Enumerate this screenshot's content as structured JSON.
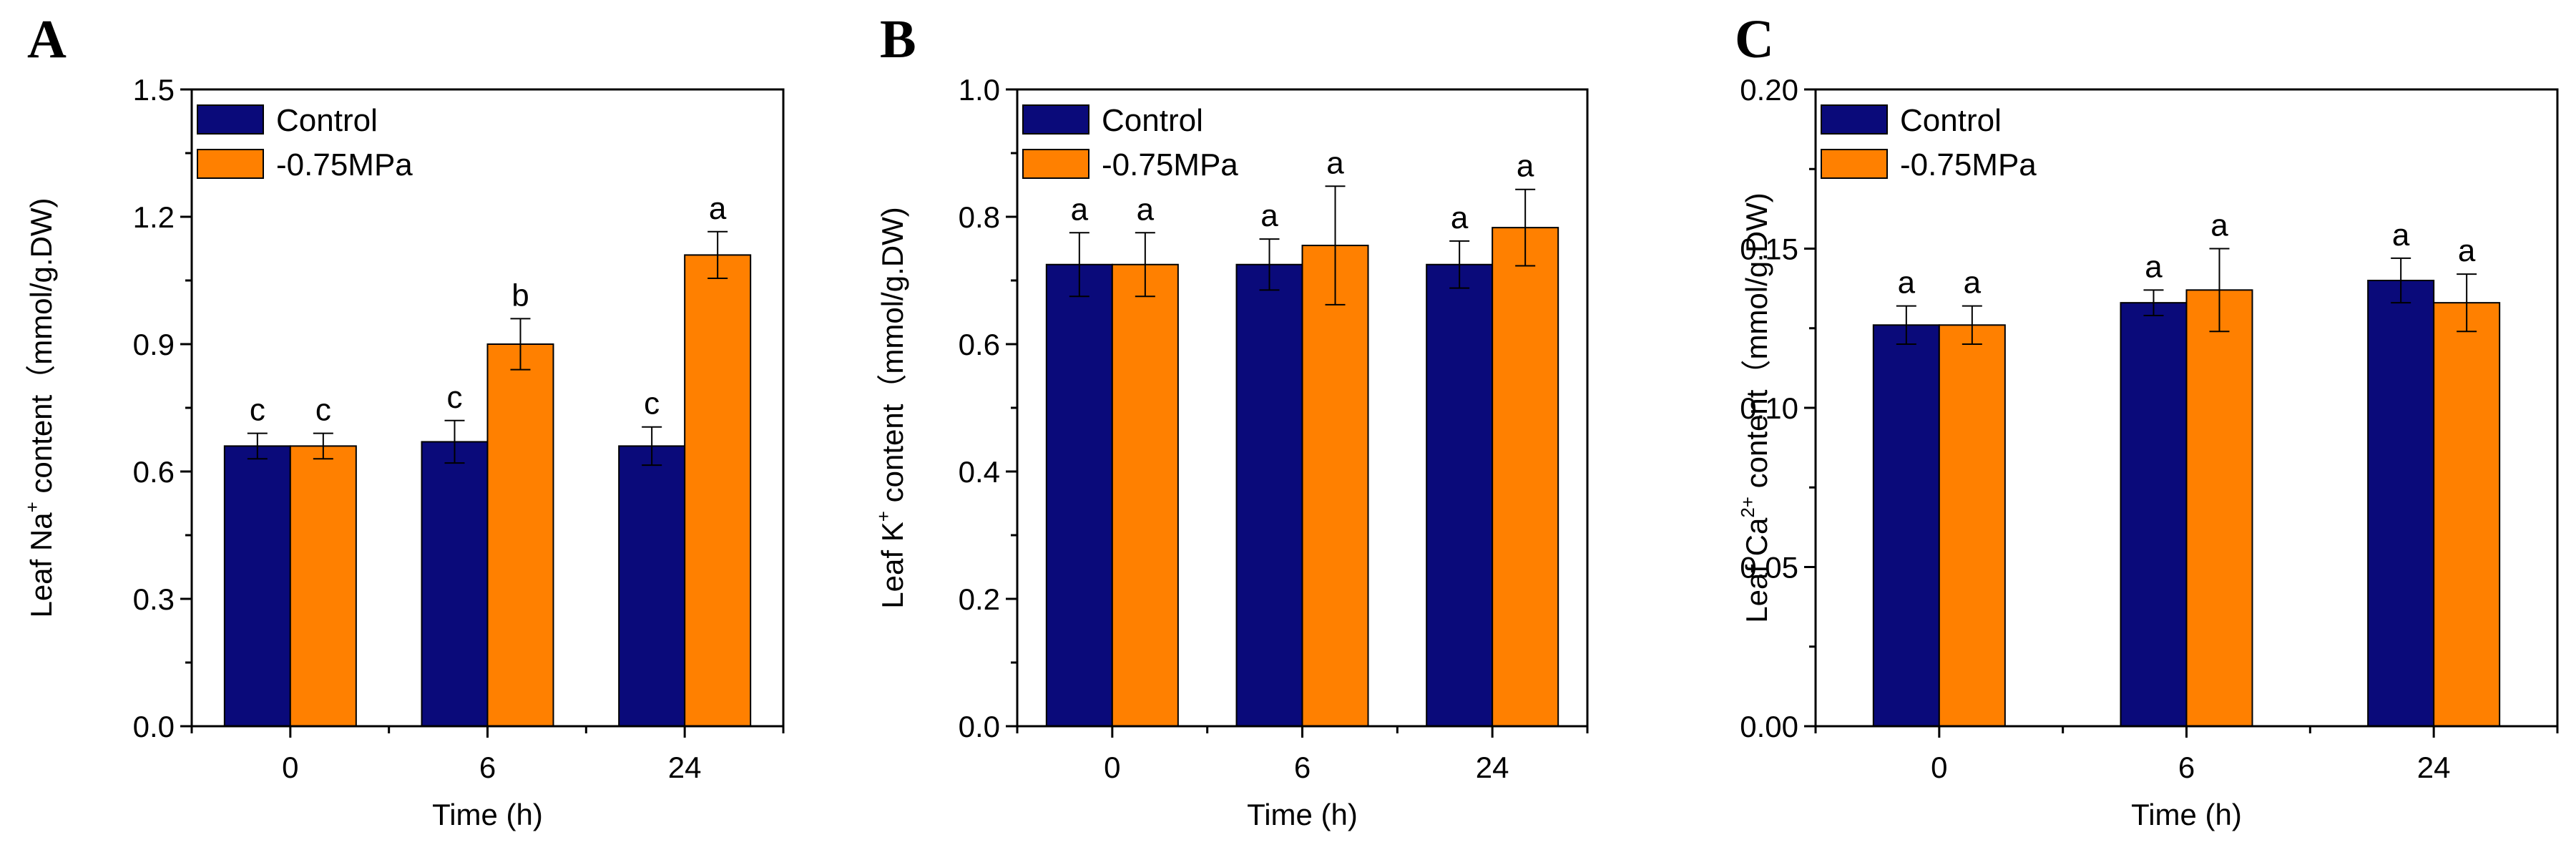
{
  "colors": {
    "control": "#0a0a7a",
    "treatment": "#ff8000",
    "axis": "#000000"
  },
  "chart_data": [
    {
      "type": "bar",
      "panel": "A",
      "categories": [
        "0",
        "6",
        "24"
      ],
      "xlabel": "Time (h)",
      "ylabel_parts": [
        "Leaf Na",
        "+",
        " content（mmol/g.DW)"
      ],
      "ylim": [
        0,
        1.5
      ],
      "yticks": [
        "0.0",
        "0.3",
        "0.6",
        "0.9",
        "1.2",
        "1.5"
      ],
      "legend_position": "top-left",
      "series": [
        {
          "name": "Control",
          "values": [
            0.66,
            0.67,
            0.66
          ],
          "errors": [
            0.03,
            0.05,
            0.045
          ],
          "sig": [
            "c",
            "c",
            "c"
          ]
        },
        {
          "name": "-0.75MPa",
          "values": [
            0.66,
            0.9,
            1.11
          ],
          "errors": [
            0.03,
            0.06,
            0.055
          ],
          "sig": [
            "c",
            "b",
            "a"
          ]
        }
      ]
    },
    {
      "type": "bar",
      "panel": "B",
      "categories": [
        "0",
        "6",
        "24"
      ],
      "xlabel": "Time (h)",
      "ylabel_parts": [
        "Leaf K",
        "+",
        " content（mmol/g.DW)"
      ],
      "ylim": [
        0,
        1.0
      ],
      "yticks": [
        "0.0",
        "0.2",
        "0.4",
        "0.6",
        "0.8",
        "1.0"
      ],
      "legend_position": "top-left",
      "series": [
        {
          "name": "Control",
          "values": [
            0.725,
            0.725,
            0.725
          ],
          "errors": [
            0.05,
            0.04,
            0.037
          ],
          "sig": [
            "a",
            "a",
            "a"
          ]
        },
        {
          "name": "-0.75MPa",
          "values": [
            0.725,
            0.755,
            0.783
          ],
          "errors": [
            0.05,
            0.093,
            0.06
          ],
          "sig": [
            "a",
            "a",
            "a"
          ]
        }
      ]
    },
    {
      "type": "bar",
      "panel": "C",
      "categories": [
        "0",
        "6",
        "24"
      ],
      "xlabel": "Time (h)",
      "ylabel_parts": [
        "Leaf Ca",
        "2+",
        " content（mmol/g.DW)"
      ],
      "ylim": [
        0,
        0.2
      ],
      "yticks": [
        "0.00",
        "0.05",
        "0.10",
        "0.15",
        "0.20"
      ],
      "legend_position": "top-left",
      "series": [
        {
          "name": "Control",
          "values": [
            0.126,
            0.133,
            0.14
          ],
          "errors": [
            0.006,
            0.004,
            0.007
          ],
          "sig": [
            "a",
            "a",
            "a"
          ]
        },
        {
          "name": "-0.75MPa",
          "values": [
            0.126,
            0.137,
            0.133
          ],
          "errors": [
            0.006,
            0.013,
            0.009
          ],
          "sig": [
            "a",
            "a",
            "a"
          ]
        }
      ]
    }
  ]
}
